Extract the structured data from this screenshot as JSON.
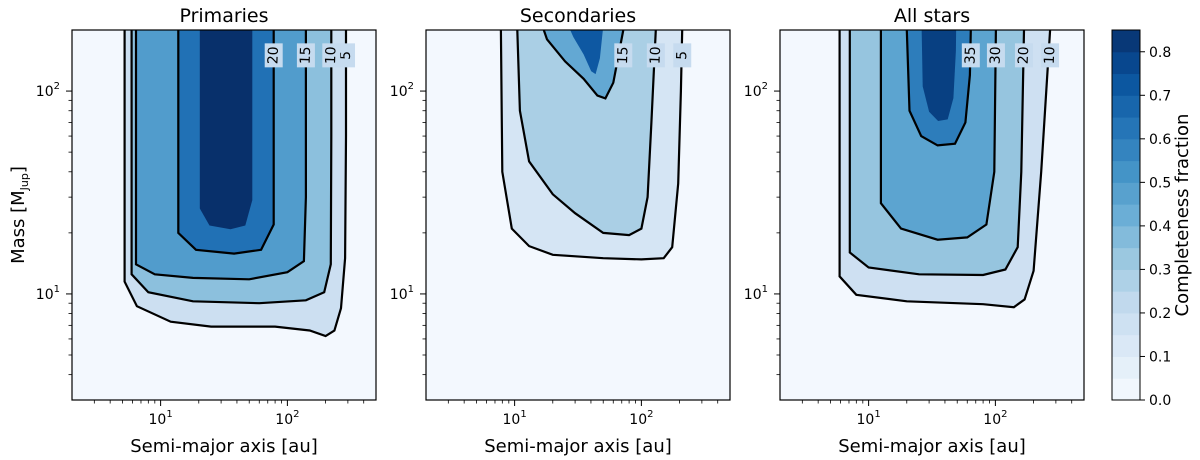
{
  "chart_data": {
    "type": "contour",
    "colorbar": {
      "label": "Completeness fraction",
      "range": [
        0,
        0.85
      ],
      "ticks": [
        0.0,
        0.1,
        0.2,
        0.3,
        0.4,
        0.5,
        0.6,
        0.7,
        0.8
      ],
      "tick_labels": [
        "0.0",
        "0.1",
        "0.2",
        "0.3",
        "0.4",
        "0.5",
        "0.6",
        "0.7",
        "0.8"
      ],
      "colormap": "Blues",
      "light_color": "#f7fbff",
      "dark_color": "#08306b"
    },
    "xlabel": "Semi-major axis [au]",
    "ylabel_main": "Mass [M",
    "ylabel_sub": "Jup",
    "ylabel_end": "]",
    "xlim": [
      2,
      500
    ],
    "ylim": [
      3,
      200
    ],
    "xscale": "log",
    "yscale": "log",
    "xticks": [
      {
        "value": 10,
        "base": "10",
        "exp": "1"
      },
      {
        "value": 100,
        "base": "10",
        "exp": "2"
      }
    ],
    "yticks": [
      {
        "value": 10,
        "base": "10",
        "exp": "1"
      },
      {
        "value": 100,
        "base": "10",
        "exp": "2"
      }
    ],
    "panels": [
      {
        "title": "Primaries",
        "peak": 0.85,
        "contours": [
          {
            "label": "5",
            "label_at": [
              290,
              150
            ],
            "points": [
              [
                5.2,
                200
              ],
              [
                5.2,
                11.5
              ],
              [
                6.5,
                8.7
              ],
              [
                12,
                7.3
              ],
              [
                25,
                6.9
              ],
              [
                80,
                6.9
              ],
              [
                150,
                6.6
              ],
              [
                200,
                6.2
              ],
              [
                235,
                6.6
              ],
              [
                265,
                8.5
              ],
              [
                285,
                15
              ],
              [
                290,
                60
              ],
              [
                290,
                200
              ]
            ]
          },
          {
            "label": "10",
            "label_at": [
              222,
              150
            ],
            "points": [
              [
                5.9,
                200
              ],
              [
                5.9,
                12.5
              ],
              [
                8,
                10.2
              ],
              [
                18,
                9.2
              ],
              [
                60,
                9
              ],
              [
                140,
                9.3
              ],
              [
                195,
                10.2
              ],
              [
                220,
                14
              ],
              [
                222,
                60
              ],
              [
                222,
                200
              ]
            ]
          },
          {
            "label": "15",
            "label_at": [
              140,
              150
            ],
            "points": [
              [
                6.4,
                200
              ],
              [
                6.4,
                14
              ],
              [
                9,
                12.5
              ],
              [
                18,
                12
              ],
              [
                50,
                11.8
              ],
              [
                100,
                12.8
              ],
              [
                135,
                14.5
              ],
              [
                140,
                30
              ],
              [
                140,
                200
              ]
            ]
          },
          {
            "label": "20",
            "label_at": [
              78,
              150
            ],
            "points": [
              [
                13.8,
                200
              ],
              [
                13.8,
                20
              ],
              [
                19,
                16.5
              ],
              [
                38,
                15.8
              ],
              [
                62,
                16.5
              ],
              [
                78,
                22
              ],
              [
                78,
                200
              ]
            ]
          }
        ]
      },
      {
        "title": "Secondaries",
        "peak": 0.72,
        "contours": [
          {
            "label": "5",
            "label_at": [
              210,
              150
            ],
            "points": [
              [
                7.8,
                200
              ],
              [
                8.0,
                40
              ],
              [
                9.5,
                21
              ],
              [
                13,
                17.2
              ],
              [
                20,
                15.6
              ],
              [
                50,
                15
              ],
              [
                100,
                14.8
              ],
              [
                150,
                15
              ],
              [
                175,
                17
              ],
              [
                195,
                35
              ],
              [
                205,
                100
              ],
              [
                210,
                200
              ]
            ]
          },
          {
            "label": "10",
            "label_at": [
              130,
              150
            ],
            "points": [
              [
                10.5,
                200
              ],
              [
                11.0,
                80
              ],
              [
                13,
                45
              ],
              [
                20,
                31
              ],
              [
                30,
                25
              ],
              [
                50,
                20
              ],
              [
                80,
                19.5
              ],
              [
                100,
                21
              ],
              [
                112,
                30
              ],
              [
                120,
                70
              ],
              [
                130,
                200
              ]
            ]
          },
          {
            "label": "15",
            "label_at": [
              72,
              150
            ],
            "points": [
              [
                17,
                200
              ],
              [
                18,
                180
              ],
              [
                25,
                140
              ],
              [
                35,
                115
              ],
              [
                45,
                95
              ],
              [
                52,
                92
              ],
              [
                60,
                110
              ],
              [
                72,
                200
              ]
            ]
          }
        ]
      },
      {
        "title": "All stars",
        "peak": 0.8,
        "contours": [
          {
            "label": "10",
            "label_at": [
              270,
              150
            ],
            "points": [
              [
                5.9,
                200
              ],
              [
                5.9,
                12.2
              ],
              [
                8,
                9.9
              ],
              [
                20,
                9.2
              ],
              [
                80,
                8.9
              ],
              [
                140,
                8.6
              ],
              [
                170,
                9.4
              ],
              [
                200,
                13
              ],
              [
                230,
                40
              ],
              [
                270,
                200
              ]
            ]
          },
          {
            "label": "20",
            "label_at": [
              168,
              150
            ],
            "points": [
              [
                7.1,
                200
              ],
              [
                7.1,
                16
              ],
              [
                10,
                13.5
              ],
              [
                25,
                12.5
              ],
              [
                80,
                12.4
              ],
              [
                120,
                13.2
              ],
              [
                150,
                17
              ],
              [
                160,
                40
              ],
              [
                168,
                200
              ]
            ]
          },
          {
            "label": "30",
            "label_at": [
              101,
              150
            ],
            "points": [
              [
                12.5,
                200
              ],
              [
                12.5,
                28
              ],
              [
                18,
                21
              ],
              [
                35,
                18.5
              ],
              [
                60,
                19
              ],
              [
                85,
                22
              ],
              [
                98,
                40
              ],
              [
                101,
                200
              ]
            ]
          },
          {
            "label": "35",
            "label_at": [
              64,
              150
            ],
            "points": [
              [
                20,
                200
              ],
              [
                21,
                80
              ],
              [
                26,
                60
              ],
              [
                35,
                54
              ],
              [
                48,
                55
              ],
              [
                58,
                70
              ],
              [
                63,
                120
              ],
              [
                64,
                200
              ]
            ]
          }
        ]
      }
    ]
  }
}
